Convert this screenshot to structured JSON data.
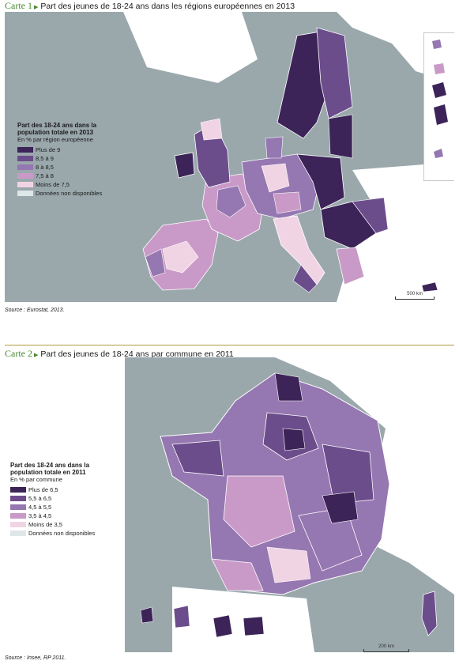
{
  "map1": {
    "label": "Carte 1",
    "title": "Part des jeunes de 18-24 ans dans les régions européennes en 2013",
    "legend_title": "Part des 18-24 ans dans la population totale en 2013",
    "legend_subtitle": "En % par région européenne",
    "legend": [
      {
        "label": "Plus de 9",
        "color": "#3d2458"
      },
      {
        "label": "8,5 à 9",
        "color": "#6c4d8c"
      },
      {
        "label": "8 à 8,5",
        "color": "#9577b1"
      },
      {
        "label": "7,5 à 8",
        "color": "#c99ac7"
      },
      {
        "label": "Moins de 7,5",
        "color": "#f1d4e4"
      },
      {
        "label": "Données non disponibles",
        "color": "#dfe6e8"
      }
    ],
    "scale_label": "500 km",
    "source": "Source : Eurostat, 2013."
  },
  "map2": {
    "label": "Carte 2",
    "title": "Part des jeunes de 18-24 ans par commune en 2011",
    "legend_title": "Part des 18-24 ans dans la population totale en 2011",
    "legend_subtitle": "En % par commune",
    "legend": [
      {
        "label": "Plus de 6,5",
        "color": "#3d2458"
      },
      {
        "label": "5,5 à 6,5",
        "color": "#6c4d8c"
      },
      {
        "label": "4,5 à 5,5",
        "color": "#9577b1"
      },
      {
        "label": "3,5 à 4,5",
        "color": "#c99ac7"
      },
      {
        "label": "Moins de 3,5",
        "color": "#f1d4e4"
      },
      {
        "label": "Données non disponibles",
        "color": "#dfe6e8"
      }
    ],
    "scale_label": "200 km",
    "source": "Source : Insee, RP 2011."
  },
  "colors": {
    "sea": "#9aa8ac",
    "land_outside": "#ffffff",
    "region_border": "#ffffff",
    "title_accent": "#4a8a2f"
  }
}
